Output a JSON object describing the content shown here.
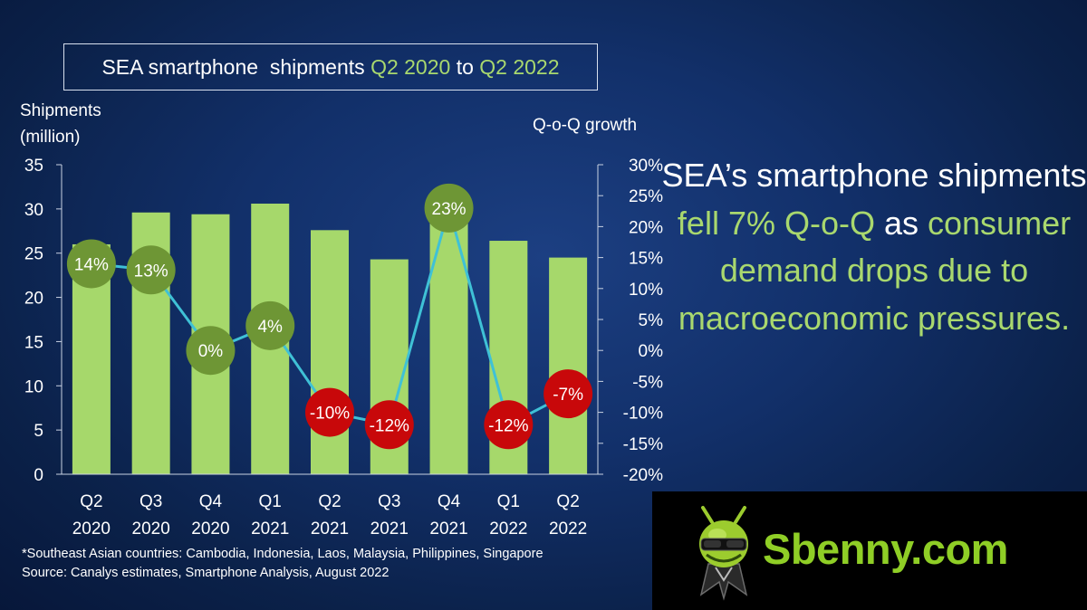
{
  "slide": {
    "title_prefix": "SEA smartphone  shipments ",
    "title_from": "Q2 2020",
    "title_mid": " to ",
    "title_to": "Q2 2022",
    "ylabel_left_line1": "Shipments",
    "ylabel_left_line2": "(million)",
    "ylabel_right": "Q-o-Q growth",
    "headline": {
      "part1": "SEA’s smartphone shipments ",
      "part2": "fell 7% Q-o-Q",
      "part3": " as ",
      "part4": "consumer demand drops due to macroeconomic pressures."
    },
    "footnote_line1": "*Southeast Asian countries: Cambodia, Indonesia, Laos, Malaysia, Philippines, Singapore",
    "footnote_line2": "Source:  Canalys estimates, Smartphone  Analysis, August 2022",
    "watermark": "Sbenny.com",
    "colors": {
      "bar": "#a6d86b",
      "line": "#3fc1d6",
      "positive_marker": "#6e9635",
      "negative_marker": "#c8080a",
      "highlight_text": "#a9d86e"
    }
  },
  "chart_data": {
    "type": "bar",
    "categories": [
      [
        "Q2",
        "2020"
      ],
      [
        "Q3",
        "2020"
      ],
      [
        "Q4",
        "2020"
      ],
      [
        "Q1",
        "2021"
      ],
      [
        "Q2",
        "2021"
      ],
      [
        "Q3",
        "2021"
      ],
      [
        "Q4",
        "2021"
      ],
      [
        "Q1",
        "2022"
      ],
      [
        "Q2",
        "2022"
      ]
    ],
    "series": [
      {
        "name": "Shipments",
        "type": "bar",
        "axis": "left",
        "values": [
          26.0,
          29.6,
          29.4,
          30.6,
          27.6,
          24.3,
          29.8,
          26.4,
          24.5
        ]
      },
      {
        "name": "Q-o-Q growth",
        "type": "line",
        "axis": "right",
        "values": [
          14,
          13,
          0,
          4,
          -10,
          -12,
          23,
          -12,
          -7
        ],
        "labels": [
          "14%",
          "13%",
          "0%",
          "4%",
          "-10%",
          "-12%",
          "23%",
          "-12%",
          "-7%"
        ]
      }
    ],
    "yaxis_left": {
      "ylim": [
        0,
        35
      ],
      "ticks": [
        0,
        5,
        10,
        15,
        20,
        25,
        30,
        35
      ]
    },
    "yaxis_right": {
      "ylim": [
        -20,
        30
      ],
      "ticks": [
        "30%",
        "25%",
        "20%",
        "15%",
        "10%",
        "5%",
        "0%",
        "-5%",
        "-10%",
        "-15%",
        "-20%"
      ]
    },
    "grid": false,
    "legend": "none"
  }
}
